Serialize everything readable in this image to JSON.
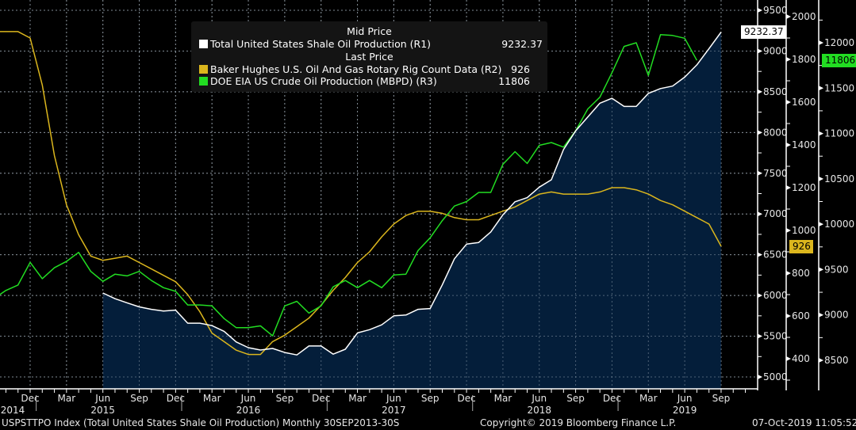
{
  "chart_data": {
    "type": "line",
    "title": "USPSTTPO Index (Total United States Shale Oil Production)",
    "frequency": "Monthly",
    "range_label": "30SEP2013-30S",
    "grid": true,
    "legend_position": "top-center",
    "x": [
      "2014-09",
      "2014-10",
      "2014-11",
      "2014-12",
      "2015-01",
      "2015-02",
      "2015-03",
      "2015-04",
      "2015-05",
      "2015-06",
      "2015-07",
      "2015-08",
      "2015-09",
      "2015-10",
      "2015-11",
      "2015-12",
      "2016-01",
      "2016-02",
      "2016-03",
      "2016-04",
      "2016-05",
      "2016-06",
      "2016-07",
      "2016-08",
      "2016-09",
      "2016-10",
      "2016-11",
      "2016-12",
      "2017-01",
      "2017-02",
      "2017-03",
      "2017-04",
      "2017-05",
      "2017-06",
      "2017-07",
      "2017-08",
      "2017-09",
      "2017-10",
      "2017-11",
      "2017-12",
      "2018-01",
      "2018-02",
      "2018-03",
      "2018-04",
      "2018-05",
      "2018-06",
      "2018-07",
      "2018-08",
      "2018-09",
      "2018-10",
      "2018-11",
      "2018-12",
      "2019-01",
      "2019-02",
      "2019-03",
      "2019-04",
      "2019-05",
      "2019-06",
      "2019-07",
      "2019-08",
      "2019-09"
    ],
    "x_tick_labels": {
      "months": [
        "Dec",
        "Mar",
        "Jun",
        "Sep",
        "Dec",
        "Mar",
        "Jun",
        "Sep",
        "Dec",
        "Mar",
        "Jun",
        "Sep",
        "Dec",
        "Mar",
        "Jun",
        "Sep",
        "Dec",
        "Mar",
        "Jun",
        "Sep"
      ],
      "month_dates": [
        "2014-12",
        "2015-03",
        "2015-06",
        "2015-09",
        "2015-12",
        "2016-03",
        "2016-06",
        "2016-09",
        "2016-12",
        "2017-03",
        "2017-06",
        "2017-09",
        "2017-12",
        "2018-03",
        "2018-06",
        "2018-09",
        "2018-12",
        "2019-03",
        "2019-06",
        "2019-09"
      ],
      "years": [
        "2014",
        "2015",
        "2016",
        "2017",
        "2018",
        "2019"
      ],
      "year_dates": [
        "2014-10",
        "2015-06",
        "2016-06",
        "2017-06",
        "2018-06",
        "2019-06"
      ]
    },
    "series": [
      {
        "name": "Total United States Shale Oil Production",
        "axis": "R1",
        "style": "area",
        "color": "#ffffff",
        "fill": "#04203d",
        "values": [
          null,
          null,
          null,
          null,
          null,
          null,
          null,
          null,
          null,
          6030,
          5960,
          5910,
          5860,
          5830,
          5810,
          5820,
          5660,
          5660,
          5630,
          5560,
          5430,
          5360,
          5330,
          5350,
          5300,
          5270,
          5380,
          5380,
          5280,
          5340,
          5540,
          5580,
          5640,
          5750,
          5760,
          5830,
          5840,
          6130,
          6450,
          6630,
          6650,
          6780,
          6990,
          7150,
          7200,
          7330,
          7420,
          7790,
          8020,
          8190,
          8360,
          8420,
          8320,
          8320,
          8480,
          8540,
          8570,
          8680,
          8830,
          9030,
          9232.37
        ]
      },
      {
        "name": "Baker Hughes U.S. Oil And Gas Rotary Rig Count Data",
        "axis": "R2",
        "style": "line",
        "color": "#dbb61d",
        "values": [
          1930,
          1930,
          1930,
          1900,
          1680,
          1350,
          1120,
          980,
          880,
          860,
          870,
          880,
          850,
          820,
          790,
          760,
          700,
          620,
          520,
          480,
          440,
          420,
          420,
          480,
          510,
          550,
          590,
          650,
          720,
          780,
          850,
          900,
          970,
          1030,
          1070,
          1090,
          1090,
          1080,
          1060,
          1050,
          1050,
          1070,
          1090,
          1110,
          1140,
          1170,
          1180,
          1170,
          1170,
          1170,
          1180,
          1200,
          1200,
          1190,
          1170,
          1140,
          1120,
          1090,
          1060,
          1030,
          926
        ]
      },
      {
        "name": "DOE EIA US Crude Oil Production (MBPD)",
        "axis": "R3",
        "style": "line",
        "color": "#22dd22",
        "values": [
          9180,
          9270,
          9330,
          9580,
          9400,
          9520,
          9590,
          9690,
          9480,
          9370,
          9450,
          9430,
          9480,
          9380,
          9300,
          9260,
          9110,
          9110,
          9100,
          8960,
          8860,
          8860,
          8880,
          8770,
          9100,
          9150,
          9020,
          9100,
          9310,
          9380,
          9300,
          9380,
          9300,
          9440,
          9450,
          9710,
          9850,
          10040,
          10200,
          10250,
          10350,
          10350,
          10660,
          10800,
          10670,
          10870,
          10900,
          10850,
          11030,
          11270,
          11400,
          11670,
          11960,
          12000,
          11640,
          12090,
          12080,
          12050,
          11806,
          null,
          null
        ]
      }
    ],
    "axes": {
      "R1": {
        "ticks": [
          5000,
          5500,
          6000,
          6500,
          7000,
          7500,
          8000,
          8500,
          9000,
          9500
        ],
        "range": [
          4870,
          9660
        ]
      },
      "R2": {
        "ticks": [
          400,
          600,
          800,
          1000,
          1200,
          1400,
          1600,
          1800,
          2000
        ],
        "range": [
          300,
          2080
        ]
      },
      "R3": {
        "ticks": [
          8500,
          9000,
          9500,
          10000,
          10500,
          11000,
          11500,
          12000
        ],
        "range": [
          8300,
          12470
        ]
      }
    }
  },
  "legend": {
    "section1_title": "Mid Price",
    "section2_title": "Last Price",
    "items": [
      {
        "label": "Total United States Shale Oil Production  (R1)",
        "value": "9232.37",
        "color": "#ffffff"
      },
      {
        "label": "Baker Hughes U.S. Oil And Gas Rotary Rig Count Data  (R2)",
        "value": "926",
        "color": "#dbb61d"
      },
      {
        "label": "DOE EIA US Crude Oil Production (MBPD)  (R3)",
        "value": "11806",
        "color": "#22dd22"
      }
    ]
  },
  "badges": {
    "r1_last": "9232.37",
    "r2_last": "926",
    "r3_last": "11806"
  },
  "footer": {
    "security": "USPSTTPO Index (Total United States Shale Oil Production)  Monthly 30SEP2013-30S",
    "copyright": "Copyright© 2019 Bloomberg Finance L.P.",
    "timestamp": "07-Oct-2019 11:05:52"
  }
}
